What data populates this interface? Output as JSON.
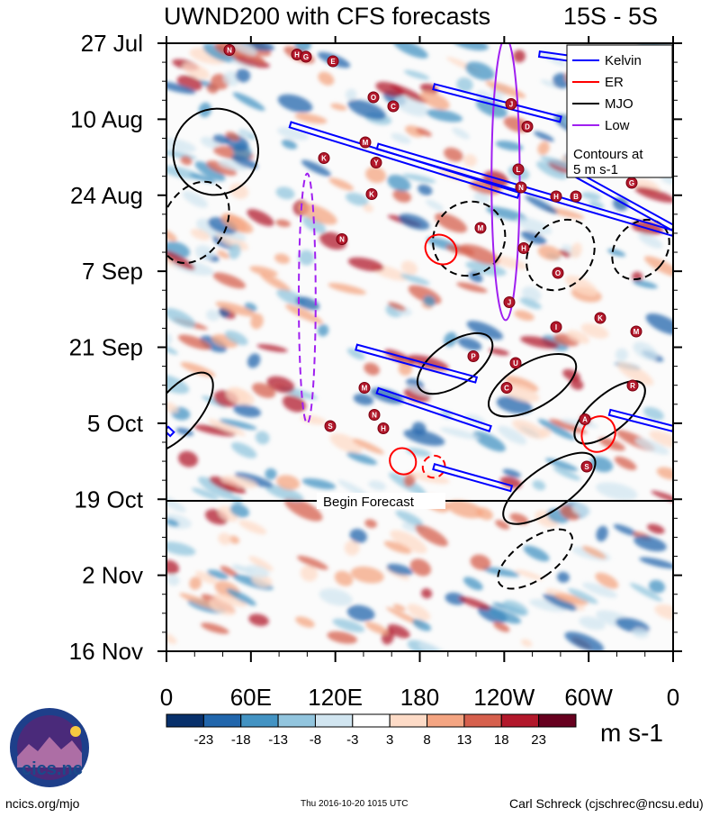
{
  "chart_data": {
    "type": "heatmap",
    "title": "UWND200 with CFS forecasts",
    "region": "15S - 5S",
    "xlim": [
      0,
      360
    ],
    "x_ticks": [
      {
        "lon": 0,
        "label": "0"
      },
      {
        "lon": 60,
        "label": "60E"
      },
      {
        "lon": 120,
        "label": "120E"
      },
      {
        "lon": 180,
        "label": "180"
      },
      {
        "lon": 240,
        "label": "120W"
      },
      {
        "lon": 300,
        "label": "60W"
      },
      {
        "lon": 360,
        "label": "0"
      }
    ],
    "y_ticks": [
      "27 Jul",
      "10 Aug",
      "24 Aug",
      "7 Sep",
      "21 Sep",
      "5 Oct",
      "19 Oct",
      "2 Nov",
      "16 Nov"
    ],
    "forecast_label": "Begin Forecast",
    "forecast_start": "19 Oct",
    "legend": {
      "entries": [
        {
          "name": "Kelvin",
          "color": "#0000ff"
        },
        {
          "name": "ER",
          "color": "#ff0000"
        },
        {
          "name": "MJO",
          "color": "#000000"
        },
        {
          "name": "Low",
          "color": "#a020f0"
        }
      ],
      "note_line1": "Contours at",
      "note_line2": "5 m s-1"
    },
    "colorbar": {
      "labels": [
        "-23",
        "-18",
        "-13",
        "-8",
        "-3",
        "3",
        "8",
        "13",
        "18",
        "23"
      ],
      "colors": [
        "#08306b",
        "#2166ac",
        "#4393c3",
        "#92c5de",
        "#d1e5f0",
        "#ffffff",
        "#fddbc7",
        "#f4a582",
        "#d6604d",
        "#b2182b",
        "#67001f"
      ],
      "units": "m s-1"
    },
    "mjo_contours": [
      {
        "lon": 35,
        "day": 20,
        "dlon": 30,
        "dday": 8,
        "angle": 30,
        "dash": false
      },
      {
        "lon": 20,
        "day": 33,
        "dlon": 22,
        "dday": 8,
        "angle": 30,
        "dash": true
      },
      {
        "lon": 8,
        "day": 68,
        "dlon": 15,
        "dday": 9,
        "angle": 40,
        "dash": false
      },
      {
        "lon": 215,
        "day": 36,
        "dlon": 25,
        "dday": 7,
        "angle": 35,
        "dash": true
      },
      {
        "lon": 205,
        "day": 59,
        "dlon": 15,
        "dday": 8,
        "angle": 55,
        "dash": false
      },
      {
        "lon": 260,
        "day": 63,
        "dlon": 16,
        "dday": 9,
        "angle": 60,
        "dash": false
      },
      {
        "lon": 280,
        "day": 39,
        "dlon": 22,
        "dday": 7,
        "angle": 40,
        "dash": true
      },
      {
        "lon": 337,
        "day": 38,
        "dlon": 18,
        "dday": 6,
        "angle": 40,
        "dash": true
      },
      {
        "lon": 315,
        "day": 68,
        "dlon": 13,
        "dday": 8,
        "angle": 50,
        "dash": false
      },
      {
        "lon": 272,
        "day": 82,
        "dlon": 15,
        "dday": 10,
        "angle": 55,
        "dash": false
      },
      {
        "lon": 262,
        "day": 95,
        "dlon": 14,
        "dday": 8,
        "angle": 55,
        "dash": true
      }
    ],
    "kelvin_tracks": [
      {
        "x1": 88,
        "d1": 15,
        "x2": 250,
        "d2": 28
      },
      {
        "x1": 150,
        "d1": 19,
        "x2": 360,
        "d2": 35
      },
      {
        "x1": 290,
        "d1": 24,
        "x2": 360,
        "d2": 34
      },
      {
        "x1": 190,
        "d1": 8,
        "x2": 280,
        "d2": 14
      },
      {
        "x1": 265,
        "d1": 2,
        "x2": 320,
        "d2": 4
      },
      {
        "x1": 135,
        "d1": 56,
        "x2": 220,
        "d2": 62
      },
      {
        "x1": 150,
        "d1": 64,
        "x2": 230,
        "d2": 71
      },
      {
        "x1": 190,
        "d1": 78,
        "x2": 245,
        "d2": 82
      },
      {
        "x1": 315,
        "d1": 68,
        "x2": 360,
        "d2": 71
      },
      {
        "x1": 0,
        "d1": 71,
        "x2": 4,
        "d2": 72
      }
    ],
    "er_contours": [
      {
        "lon": 195,
        "day": 38,
        "dlon": 10,
        "dday": 3,
        "angle": -55,
        "dash": false
      },
      {
        "lon": 168,
        "day": 77,
        "dlon": 9,
        "dday": 2.5,
        "angle": -45,
        "dash": false
      },
      {
        "lon": 190,
        "day": 78,
        "dlon": 8,
        "dday": 2,
        "angle": -35,
        "dash": true
      },
      {
        "lon": 307,
        "day": 72,
        "dlon": 13,
        "dday": 3,
        "angle": -60,
        "dash": false
      }
    ],
    "low_contours": [
      {
        "lon": 241,
        "day": 25,
        "dlon": 10,
        "dday": 26,
        "angle": 0,
        "dash": false
      },
      {
        "lon": 100,
        "day": 47,
        "dlon": 6,
        "dday": 23,
        "angle": 0,
        "dash": true
      }
    ],
    "storm_markers": [
      "N",
      "H",
      "G",
      "E",
      "O",
      "C",
      "J",
      "D",
      "M",
      "K",
      "Y",
      "K",
      "L",
      "N",
      "H",
      "B",
      "G",
      "M",
      "N",
      "H",
      "O",
      "J",
      "I",
      "K",
      "M",
      "R",
      "U",
      "P",
      "C",
      "M",
      "N",
      "A",
      "S",
      "S",
      "H"
    ]
  }
}
